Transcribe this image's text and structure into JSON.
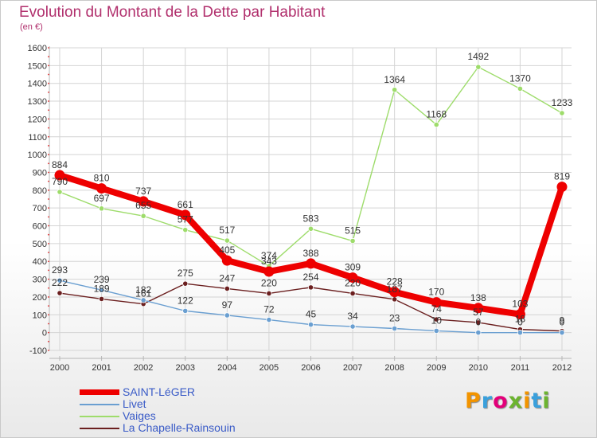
{
  "header": {
    "title": "Evolution du Montant de la Dette par Habitant",
    "unit": "(en €)"
  },
  "brand": {
    "logo_text": "Proxiti"
  },
  "chart_data": {
    "type": "line",
    "title": "Evolution du Montant de la Dette par Habitant",
    "ylabel": "(en €)",
    "xlabel": "",
    "ylim": [
      -100,
      1600
    ],
    "yticks": [
      -100,
      0,
      100,
      200,
      300,
      400,
      500,
      600,
      700,
      800,
      900,
      1000,
      1100,
      1200,
      1300,
      1400,
      1500,
      1600
    ],
    "grid": true,
    "legend_position": "bottom-left",
    "categories": [
      "2000",
      "2001",
      "2002",
      "2003",
      "2004",
      "2005",
      "2006",
      "2007",
      "2008",
      "2009",
      "2010",
      "2011",
      "2012"
    ],
    "series": [
      {
        "name": "La Chapelle-Rainsouin",
        "color": "#6b1f1f",
        "values": [
          222,
          189,
          161,
          275,
          247,
          220,
          254,
          220,
          187,
          74,
          57,
          18,
          9
        ]
      },
      {
        "name": "Livet",
        "color": "#6a9fd1",
        "values": [
          293,
          239,
          182,
          122,
          97,
          72,
          45,
          34,
          23,
          10,
          0,
          0,
          0
        ]
      },
      {
        "name": "Vaiges",
        "color": "#9edc6b",
        "values": [
          790,
          697,
          655,
          577,
          517,
          374,
          583,
          515,
          1364,
          1168,
          1492,
          1370,
          1233
        ]
      },
      {
        "name": "SAINT-LéGER",
        "color": "#ee0000",
        "values": [
          884,
          810,
          737,
          661,
          405,
          343,
          388,
          309,
          228,
          170,
          138,
          103,
          819
        ]
      }
    ],
    "legend": [
      "SAINT-LéGER",
      "Livet",
      "Vaiges",
      "La Chapelle-Rainsouin"
    ],
    "logo_colors": [
      "#f29400",
      "#3aa0dc",
      "#e3007a",
      "#6cb42f",
      "#f29400",
      "#3aa0dc",
      "#6cb42f"
    ]
  }
}
